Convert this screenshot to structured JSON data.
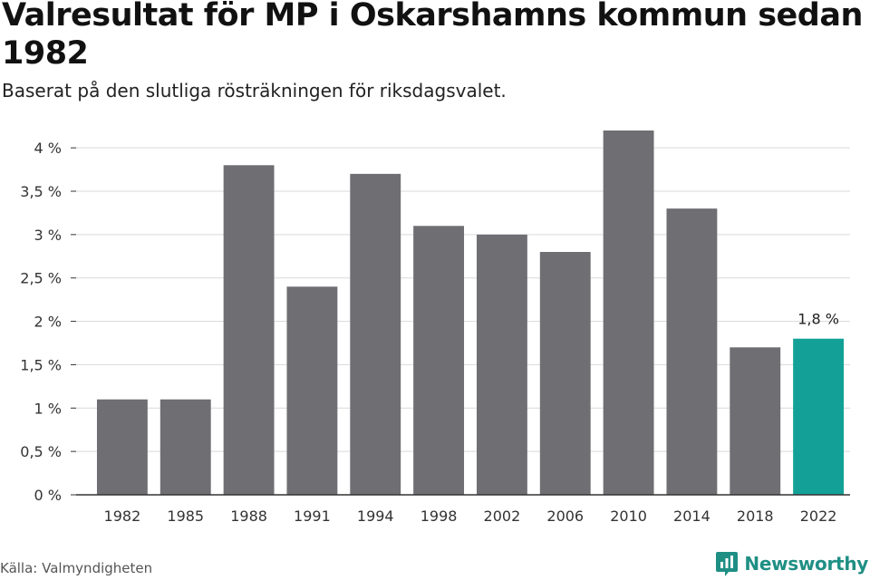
{
  "header": {
    "title": "Valresultat för MP i Oskarshamns kommun sedan 1982",
    "subtitle": "Baserat på den slutliga rösträkningen för riksdagsvalet."
  },
  "footer": {
    "source": "Källa: Valmyndigheten",
    "brand": "Newsworthy",
    "brand_icon": "newsworthy-logo-icon"
  },
  "colors": {
    "bar": "#6f6e73",
    "highlight": "#13a197",
    "grid": "#d9d9d9",
    "axis": "#333333",
    "brand": "#1f8f84"
  },
  "chart_data": {
    "type": "bar",
    "title": "Valresultat för MP i Oskarshamns kommun sedan 1982",
    "subtitle": "Baserat på den slutliga rösträkningen för riksdagsvalet.",
    "xlabel": "",
    "ylabel": "",
    "categories": [
      "1982",
      "1985",
      "1988",
      "1991",
      "1994",
      "1998",
      "2002",
      "2006",
      "2010",
      "2014",
      "2018",
      "2022"
    ],
    "values": [
      1.1,
      1.1,
      3.8,
      2.4,
      3.7,
      3.1,
      3.0,
      2.8,
      4.2,
      3.3,
      1.7,
      1.8
    ],
    "ylim": [
      0,
      4.2
    ],
    "yticks": [
      0,
      0.5,
      1,
      1.5,
      2,
      2.5,
      3,
      3.5,
      4
    ],
    "ytick_labels": [
      "0 %",
      "0,5 %",
      "1 %",
      "1,5 %",
      "2 %",
      "2,5 %",
      "3 %",
      "3,5 %",
      "4 %"
    ],
    "highlight_index": 11,
    "data_labels": [
      {
        "index": 11,
        "text": "1,8 %"
      }
    ],
    "grid": true,
    "legend": "none"
  }
}
